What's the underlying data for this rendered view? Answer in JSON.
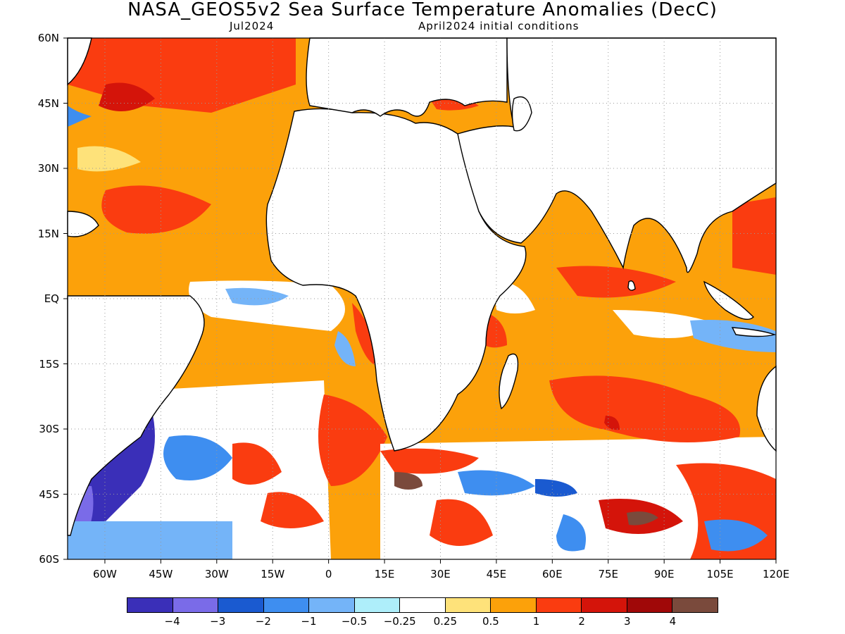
{
  "title": "NASA_GEOS5v2 Sea Surface Temperature Anomalies (DecC)",
  "subtitle_left": "Jul2024",
  "subtitle_right": "April2024 initial conditions",
  "map": {
    "lon_range": [
      -70,
      120
    ],
    "lat_range": [
      -60,
      60
    ],
    "lat_labels": [
      "60N",
      "45N",
      "30N",
      "15N",
      "EQ",
      "15S",
      "30S",
      "45S",
      "60S"
    ],
    "lon_labels": [
      "60W",
      "45W",
      "30W",
      "15W",
      "0",
      "15E",
      "30E",
      "45E",
      "60E",
      "75E",
      "90E",
      "105E",
      "120E"
    ]
  },
  "colorbar": {
    "colors": [
      "#3a2fb8",
      "#7a6be8",
      "#1a5ad0",
      "#3e8ef0",
      "#74b4f8",
      "#aeeefa",
      "#ffffff",
      "#fee27a",
      "#fca10a",
      "#fa3c10",
      "#d4140a",
      "#a00808",
      "#7a4a3c"
    ],
    "labels": [
      "−4",
      "−3",
      "−2",
      "−1",
      "−0.5",
      "−0.25",
      "0.25",
      "0.5",
      "1",
      "2",
      "3",
      "4"
    ]
  }
}
